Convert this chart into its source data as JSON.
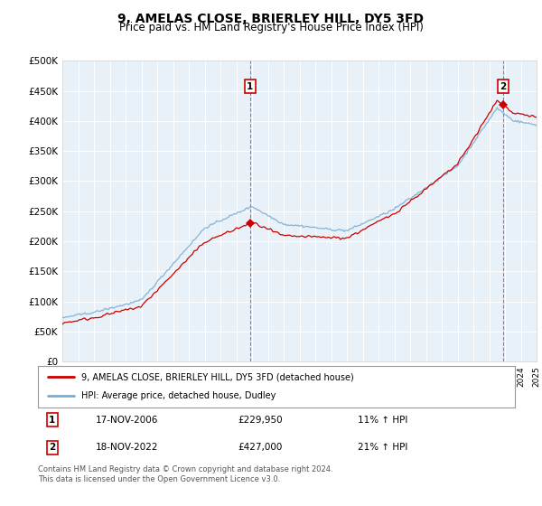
{
  "title": "9, AMELAS CLOSE, BRIERLEY HILL, DY5 3FD",
  "subtitle": "Price paid vs. HM Land Registry's House Price Index (HPI)",
  "ylim": [
    0,
    500000
  ],
  "yticks": [
    0,
    50000,
    100000,
    150000,
    200000,
    250000,
    300000,
    350000,
    400000,
    450000,
    500000
  ],
  "ytick_labels": [
    "£0",
    "£50K",
    "£100K",
    "£150K",
    "£200K",
    "£250K",
    "£300K",
    "£350K",
    "£400K",
    "£450K",
    "£500K"
  ],
  "xlim_start": 1995,
  "xlim_end": 2025,
  "sale1_date_num": 2006.88,
  "sale1_price": 229950,
  "sale1_label": "17-NOV-2006",
  "sale1_amount": "£229,950",
  "sale1_hpi": "11% ↑ HPI",
  "sale2_date_num": 2022.88,
  "sale2_price": 427000,
  "sale2_label": "18-NOV-2022",
  "sale2_amount": "£427,000",
  "sale2_hpi": "21% ↑ HPI",
  "red_line_color": "#cc0000",
  "blue_line_color": "#7aadd4",
  "plot_bg_color": "#e8f0f8",
  "grid_color": "#ffffff",
  "legend_label_red": "9, AMELAS CLOSE, BRIERLEY HILL, DY5 3FD (detached house)",
  "legend_label_blue": "HPI: Average price, detached house, Dudley",
  "footer": "Contains HM Land Registry data © Crown copyright and database right 2024.\nThis data is licensed under the Open Government Licence v3.0.",
  "title_fontsize": 10,
  "subtitle_fontsize": 8.5
}
